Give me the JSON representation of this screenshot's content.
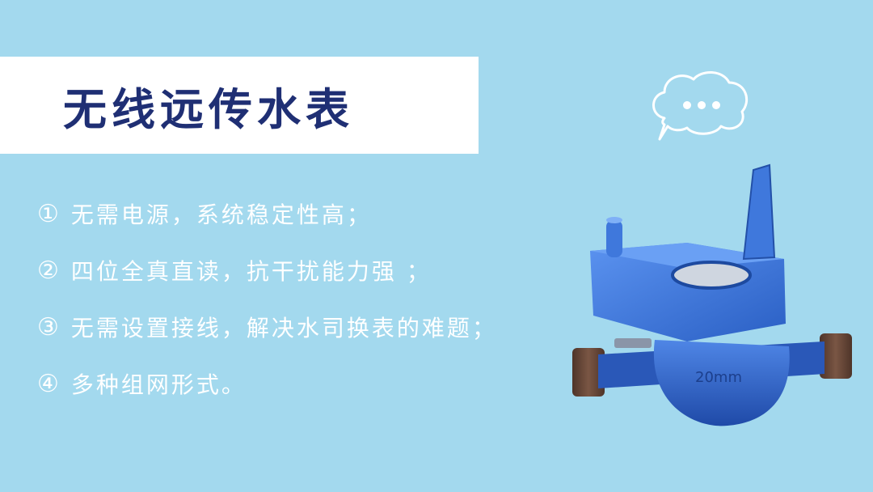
{
  "title": "无线远传水表",
  "features": [
    {
      "num": "①",
      "text": "无需电源，系统稳定性高；"
    },
    {
      "num": "②",
      "text": "四位全真直读，抗干扰能力强 ；"
    },
    {
      "num": "③",
      "text": "无需设置接线，解决水司换表的难题；"
    },
    {
      "num": "④",
      "text": "多种组网形式。"
    }
  ],
  "meter_label": "20mm",
  "colors": {
    "background": "#a3d9ee",
    "title_text": "#1f2f74",
    "meter_blue": "#2f63c8",
    "fitting_brown": "#6b4a3a"
  },
  "icons": [
    "speech-bubble-icon",
    "water-meter-image"
  ]
}
